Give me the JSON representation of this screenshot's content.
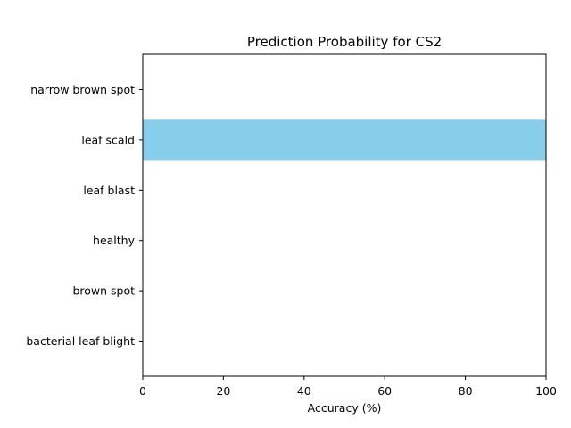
{
  "chart_data": {
    "type": "bar",
    "orientation": "horizontal",
    "title": "Prediction Probability for CS2",
    "xlabel": "Accuracy (%)",
    "ylabel": "",
    "categories": [
      "bacterial leaf blight",
      "brown spot",
      "healthy",
      "leaf blast",
      "leaf scald",
      "narrow brown spot"
    ],
    "values": [
      0,
      0,
      0,
      0,
      100,
      0
    ],
    "xlim": [
      0,
      100
    ],
    "xticks": [
      0,
      20,
      40,
      60,
      80,
      100
    ],
    "bar_color": "#87ceeb",
    "grid": false
  }
}
